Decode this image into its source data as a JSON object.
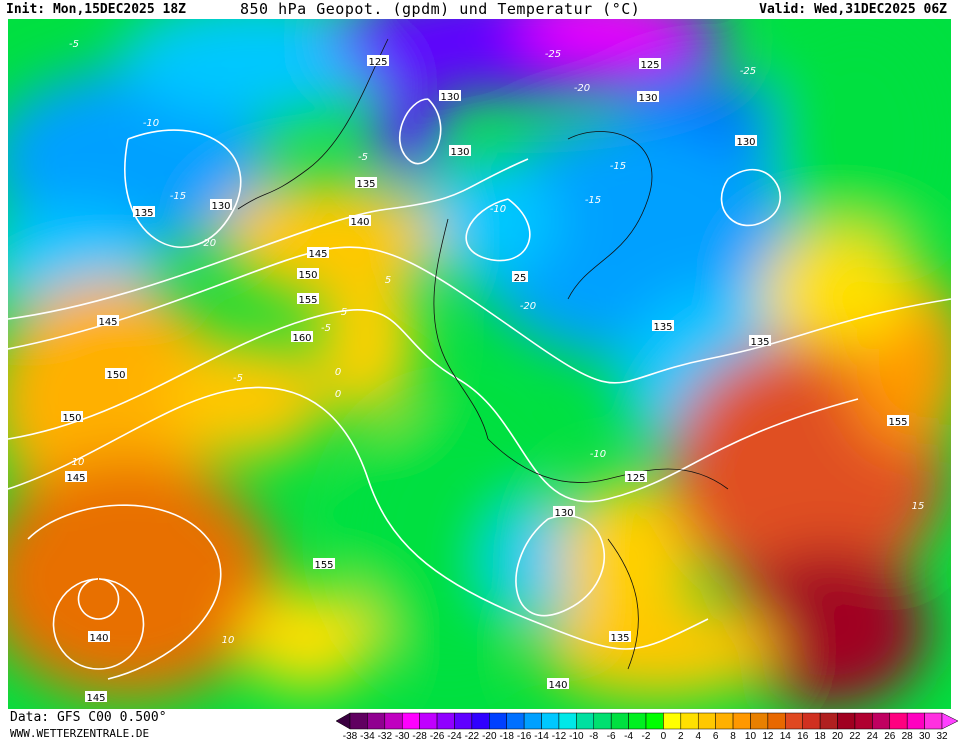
{
  "header": {
    "init": "Init: Mon,15DEC2025 18Z",
    "title": "850 hPa Geopot. (gpdm) und Temperatur (°C)",
    "valid": "Valid: Wed,31DEC2025 06Z"
  },
  "footer": {
    "source": "Data: GFS C00 0.500°",
    "website": "WWW.WETTERZENTRALE.DE"
  },
  "colorbar": {
    "labels": [
      "-38",
      "-34",
      "-32",
      "-30",
      "-28",
      "-26",
      "-24",
      "-22",
      "-20",
      "-18",
      "-16",
      "-14",
      "-12",
      "-10",
      "-8",
      "-6",
      "-4",
      "-2",
      "0",
      "2",
      "4",
      "6",
      "8",
      "10",
      "12",
      "14",
      "16",
      "18",
      "20",
      "22",
      "24",
      "26",
      "28",
      "30",
      "32"
    ],
    "low_arrow_color": "#3a0040",
    "high_arrow_color": "#ff40ff",
    "colors": [
      "#600060",
      "#900090",
      "#c000c0",
      "#ff00ff",
      "#c000ff",
      "#9000ff",
      "#6000ff",
      "#3000ff",
      "#0040ff",
      "#0070ff",
      "#00a0ff",
      "#00c8ff",
      "#00e8e8",
      "#00e0a0",
      "#00e070",
      "#00e040",
      "#00f020",
      "#00ff00",
      "#ffff00",
      "#ffe000",
      "#ffc800",
      "#ffb000",
      "#ff9800",
      "#e88000",
      "#e86800",
      "#e04820",
      "#d03020",
      "#b02020",
      "#a00020",
      "#b00030",
      "#c00060",
      "#ff0080",
      "#ff00c0",
      "#ff30e0"
    ]
  },
  "geopotential_labels": [
    "125",
    "130",
    "130",
    "125",
    "130",
    "135",
    "130",
    "135",
    "140",
    "145",
    "150",
    "155",
    "160",
    "145",
    "150",
    "150",
    "145",
    "140",
    "145",
    "155",
    "140",
    "135",
    "125",
    "130",
    "130",
    "135",
    "135",
    "155",
    "25"
  ],
  "temperature_labels": [
    "-5",
    "-10",
    "-15",
    "-20",
    "-25",
    "-20",
    "-15",
    "-10",
    "-5",
    "0",
    "5",
    "10",
    "-5",
    "-10",
    "-15",
    "-20",
    "-25",
    "-5",
    "0",
    "5",
    "10",
    "15"
  ]
}
